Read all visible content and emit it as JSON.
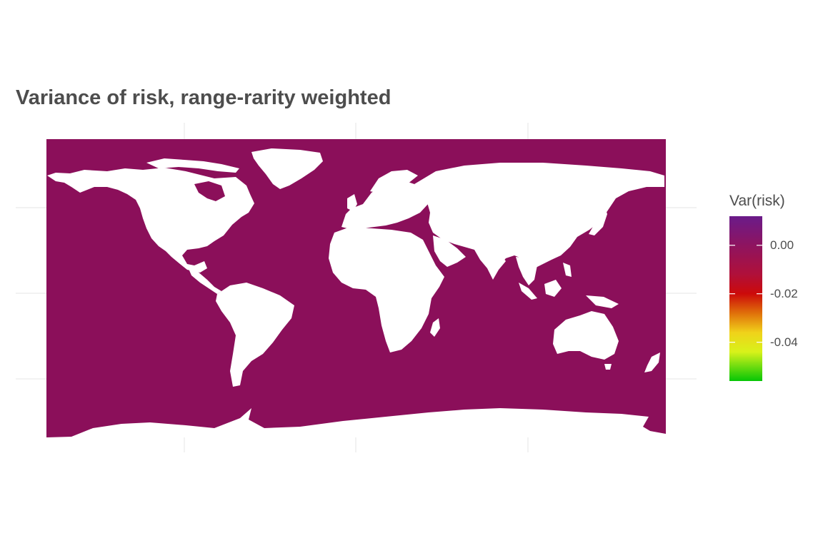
{
  "title": "Variance of risk, range-rarity weighted",
  "colors": {
    "ocean_fill": "#8b0f5a",
    "land_fill": "#ffffff",
    "grid": "#e5e5e5",
    "text": "#4d4d4d"
  },
  "legend": {
    "title": "Var(risk)",
    "ticks": [
      {
        "label": "0.00",
        "value": 0.0
      },
      {
        "label": "-0.02",
        "value": -0.02
      },
      {
        "label": "-0.04",
        "value": -0.04
      }
    ],
    "range": [
      -0.056,
      0.012
    ],
    "gradient": [
      {
        "value": 0.012,
        "color": "#6a1b8a"
      },
      {
        "value": 0.0,
        "color": "#8e1460"
      },
      {
        "value": -0.012,
        "color": "#b0103a"
      },
      {
        "value": -0.02,
        "color": "#cc0a0a"
      },
      {
        "value": -0.028,
        "color": "#e0700a"
      },
      {
        "value": -0.036,
        "color": "#f0d21a"
      },
      {
        "value": -0.044,
        "color": "#d8f21a"
      },
      {
        "value": -0.056,
        "color": "#06c606"
      }
    ]
  },
  "map": {
    "projection": "equirectangular",
    "extent": {
      "lon": [
        -180,
        180
      ],
      "lat": [
        -90,
        84
      ]
    }
  }
}
